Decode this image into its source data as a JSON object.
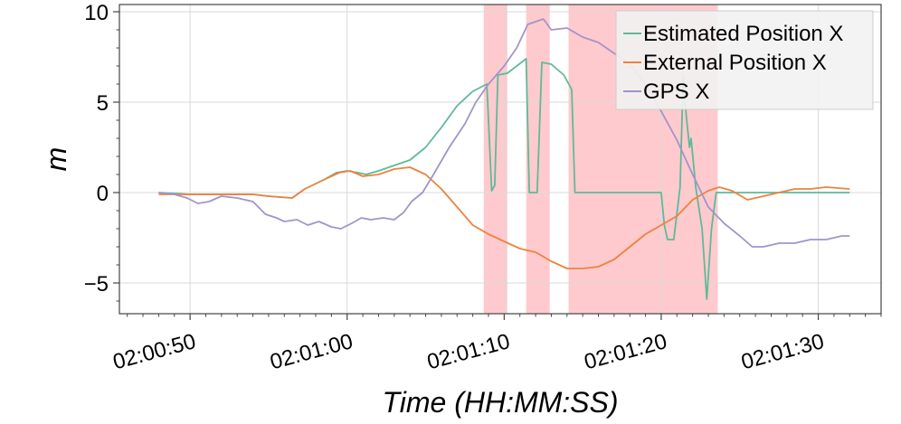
{
  "chart_data": {
    "type": "line",
    "xlabel": "Time (HH:MM:SS)",
    "ylabel": "m",
    "xlim": [
      "02:00:45.5",
      "02:01:34"
    ],
    "ylim": [
      -6.7,
      10.4
    ],
    "grid": true,
    "legend_position": "top-right",
    "x_ticks": [
      "02:00:50",
      "02:01:00",
      "02:01:10",
      "02:01:20",
      "02:01:30"
    ],
    "y_ticks": [
      -5,
      0,
      5,
      10
    ],
    "y_tick_labels": [
      "−5",
      "0",
      "5",
      "10"
    ],
    "shaded_regions": [
      {
        "start": "02:01:08.7",
        "end": "02:01:10.2"
      },
      {
        "start": "02:01:11.4",
        "end": "02:01:12.9"
      },
      {
        "start": "02:01:14.1",
        "end": "02:01:23.6"
      }
    ],
    "colors": {
      "estimated": "#5fba98",
      "external": "#ec8340",
      "gps": "#a195c9",
      "shade": "#ff9ea4"
    },
    "series": [
      {
        "name": "Estimated Position X",
        "color": "#5fba98",
        "points": [
          [
            "02:00:48.0",
            0.0
          ],
          [
            "02:00:50.0",
            -0.1
          ],
          [
            "02:00:52.0",
            -0.1
          ],
          [
            "02:00:54.0",
            -0.1
          ],
          [
            "02:00:55.0",
            -0.2
          ],
          [
            "02:00:56.5",
            -0.3
          ],
          [
            "02:00:57.3",
            0.2
          ],
          [
            "02:00:58.5",
            0.7
          ],
          [
            "02:00:59.3",
            1.1
          ],
          [
            "02:01:00.0",
            1.2
          ],
          [
            "02:01:00.7",
            1.1
          ],
          [
            "02:01:01.2",
            1.0
          ],
          [
            "02:01:02.0",
            1.2
          ],
          [
            "02:01:03.0",
            1.5
          ],
          [
            "02:01:04.0",
            1.8
          ],
          [
            "02:01:05.0",
            2.5
          ],
          [
            "02:01:06.0",
            3.6
          ],
          [
            "02:01:07.0",
            4.8
          ],
          [
            "02:01:08.0",
            5.6
          ],
          [
            "02:01:08.9",
            6.0
          ],
          [
            "02:01:09.2",
            0.1
          ],
          [
            "02:01:09.4",
            0.4
          ],
          [
            "02:01:09.6",
            6.5
          ],
          [
            "02:01:10.2",
            6.6
          ],
          [
            "02:01:10.8",
            7.0
          ],
          [
            "02:01:11.4",
            7.4
          ],
          [
            "02:01:11.6",
            0.0
          ],
          [
            "02:01:12.1",
            0.0
          ],
          [
            "02:01:12.4",
            7.2
          ],
          [
            "02:01:13.0",
            7.1
          ],
          [
            "02:01:13.8",
            6.5
          ],
          [
            "02:01:14.3",
            5.7
          ],
          [
            "02:01:14.5",
            0.0
          ],
          [
            "02:01:16.0",
            0.0
          ],
          [
            "02:01:18.0",
            0.0
          ],
          [
            "02:01:20.0",
            0.0
          ],
          [
            "02:01:20.2",
            -1.8
          ],
          [
            "02:01:20.4",
            -2.6
          ],
          [
            "02:01:20.8",
            -2.6
          ],
          [
            "02:01:21.2",
            0.3
          ],
          [
            "02:01:21.4",
            6.5
          ],
          [
            "02:01:21.6",
            4.2
          ],
          [
            "02:01:21.8",
            2.5
          ],
          [
            "02:01:21.9",
            3.0
          ],
          [
            "02:01:22.2",
            0.3
          ],
          [
            "02:01:22.6",
            -2.0
          ],
          [
            "02:01:22.9",
            -5.9
          ],
          [
            "02:01:23.2",
            -2.0
          ],
          [
            "02:01:23.5",
            0.0
          ],
          [
            "02:01:25.0",
            0.0
          ],
          [
            "02:01:28.0",
            0.0
          ],
          [
            "02:01:32.0",
            0.0
          ]
        ]
      },
      {
        "name": "External Position X",
        "color": "#ec8340",
        "points": [
          [
            "02:00:48.0",
            -0.1
          ],
          [
            "02:00:50.0",
            -0.1
          ],
          [
            "02:00:52.0",
            -0.1
          ],
          [
            "02:00:54.0",
            -0.1
          ],
          [
            "02:00:55.0",
            -0.2
          ],
          [
            "02:00:56.5",
            -0.3
          ],
          [
            "02:00:57.3",
            0.2
          ],
          [
            "02:00:58.5",
            0.7
          ],
          [
            "02:00:59.5",
            1.1
          ],
          [
            "02:01:00.2",
            1.2
          ],
          [
            "02:01:01.0",
            0.9
          ],
          [
            "02:01:02.0",
            1.0
          ],
          [
            "02:01:03.0",
            1.3
          ],
          [
            "02:01:04.0",
            1.4
          ],
          [
            "02:01:05.0",
            1.0
          ],
          [
            "02:01:06.0",
            0.2
          ],
          [
            "02:01:07.0",
            -0.8
          ],
          [
            "02:01:08.0",
            -1.8
          ],
          [
            "02:01:09.0",
            -2.3
          ],
          [
            "02:01:10.0",
            -2.7
          ],
          [
            "02:01:11.0",
            -3.1
          ],
          [
            "02:01:12.0",
            -3.3
          ],
          [
            "02:01:13.0",
            -3.8
          ],
          [
            "02:01:14.0",
            -4.2
          ],
          [
            "02:01:15.0",
            -4.2
          ],
          [
            "02:01:16.0",
            -4.1
          ],
          [
            "02:01:17.0",
            -3.7
          ],
          [
            "02:01:18.0",
            -3.0
          ],
          [
            "02:01:19.0",
            -2.3
          ],
          [
            "02:01:20.0",
            -1.8
          ],
          [
            "02:01:21.0",
            -1.3
          ],
          [
            "02:01:22.0",
            -0.4
          ],
          [
            "02:01:23.0",
            0.1
          ],
          [
            "02:01:23.7",
            0.3
          ],
          [
            "02:01:24.5",
            0.1
          ],
          [
            "02:01:25.5",
            -0.4
          ],
          [
            "02:01:26.5",
            -0.2
          ],
          [
            "02:01:27.5",
            0.0
          ],
          [
            "02:01:28.5",
            0.2
          ],
          [
            "02:01:29.5",
            0.2
          ],
          [
            "02:01:30.5",
            0.3
          ],
          [
            "02:01:32.0",
            0.2
          ]
        ]
      },
      {
        "name": "GPS X",
        "color": "#a195c9",
        "points": [
          [
            "02:00:48.0",
            0.0
          ],
          [
            "02:00:49.0",
            -0.1
          ],
          [
            "02:00:49.8",
            -0.3
          ],
          [
            "02:00:50.5",
            -0.6
          ],
          [
            "02:00:51.2",
            -0.5
          ],
          [
            "02:00:52.0",
            -0.2
          ],
          [
            "02:00:53.0",
            -0.3
          ],
          [
            "02:00:54.0",
            -0.5
          ],
          [
            "02:00:54.8",
            -1.2
          ],
          [
            "02:00:55.5",
            -1.4
          ],
          [
            "02:00:56.0",
            -1.6
          ],
          [
            "02:00:56.8",
            -1.5
          ],
          [
            "02:00:57.5",
            -1.8
          ],
          [
            "02:00:58.2",
            -1.6
          ],
          [
            "02:00:59.0",
            -1.9
          ],
          [
            "02:00:59.6",
            -2.0
          ],
          [
            "02:01:00.3",
            -1.7
          ],
          [
            "02:01:00.9",
            -1.4
          ],
          [
            "02:01:01.5",
            -1.5
          ],
          [
            "02:01:02.3",
            -1.4
          ],
          [
            "02:01:03.0",
            -1.5
          ],
          [
            "02:01:03.6",
            -1.1
          ],
          [
            "02:01:04.1",
            -0.5
          ],
          [
            "02:01:04.8",
            0.0
          ],
          [
            "02:01:05.5",
            1.0
          ],
          [
            "02:01:06.5",
            2.5
          ],
          [
            "02:01:07.5",
            3.8
          ],
          [
            "02:01:08.2",
            5.0
          ],
          [
            "02:01:09.0",
            6.0
          ],
          [
            "02:01:10.0",
            7.0
          ],
          [
            "02:01:10.8",
            8.0
          ],
          [
            "02:01:11.5",
            9.3
          ],
          [
            "02:01:12.5",
            9.6
          ],
          [
            "02:01:13.0",
            9.0
          ],
          [
            "02:01:14.0",
            9.1
          ],
          [
            "02:01:15.0",
            8.6
          ],
          [
            "02:01:16.0",
            8.3
          ],
          [
            "02:01:17.0",
            7.7
          ],
          [
            "02:01:18.0",
            7.1
          ],
          [
            "02:01:19.0",
            6.0
          ],
          [
            "02:01:20.0",
            4.5
          ],
          [
            "02:01:21.0",
            2.9
          ],
          [
            "02:01:22.0",
            1.0
          ],
          [
            "02:01:23.0",
            -0.8
          ],
          [
            "02:01:24.0",
            -1.7
          ],
          [
            "02:01:25.0",
            -2.4
          ],
          [
            "02:01:25.8",
            -3.0
          ],
          [
            "02:01:26.5",
            -3.0
          ],
          [
            "02:01:27.5",
            -2.8
          ],
          [
            "02:01:28.5",
            -2.8
          ],
          [
            "02:01:29.5",
            -2.6
          ],
          [
            "02:01:30.5",
            -2.6
          ],
          [
            "02:01:31.5",
            -2.4
          ],
          [
            "02:01:32.0",
            -2.4
          ]
        ]
      }
    ]
  }
}
